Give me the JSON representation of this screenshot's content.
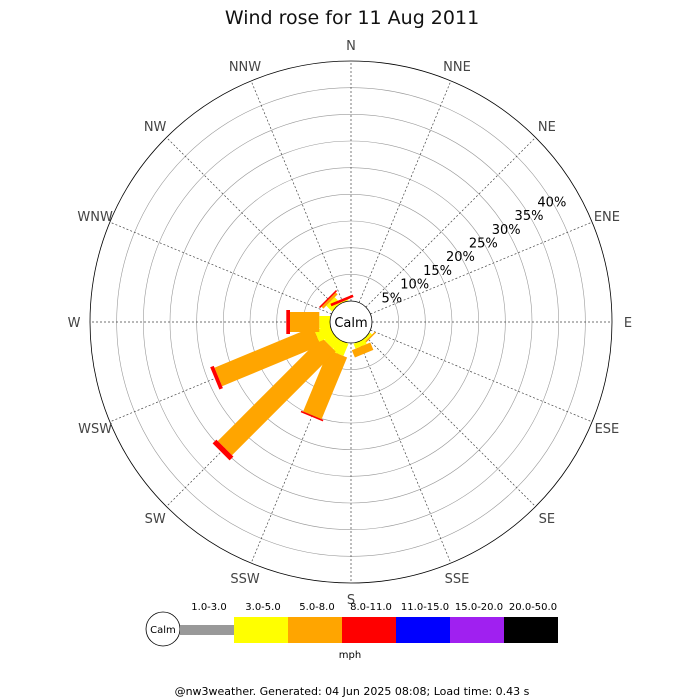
{
  "chart_data": {
    "type": "wind-rose",
    "title": "Wind rose for 11 Aug 2011",
    "directions": [
      "N",
      "NNE",
      "NE",
      "ENE",
      "E",
      "ESE",
      "SE",
      "SSE",
      "S",
      "SSW",
      "SW",
      "WSW",
      "W",
      "WNW",
      "NW",
      "NNW"
    ],
    "radial_ticks": [
      "5%",
      "10%",
      "15%",
      "20%",
      "25%",
      "30%",
      "35%",
      "40%"
    ],
    "radial_max_percent": 45,
    "calm_label": "Calm",
    "speed_bins": [
      {
        "label": "1.0-3.0",
        "color": "#999999"
      },
      {
        "label": "3.0-5.0",
        "color": "#ffff00"
      },
      {
        "label": "5.0-8.0",
        "color": "#ffa500"
      },
      {
        "label": "8.0-11.0",
        "color": "#ff0000"
      },
      {
        "label": "11.0-15.0",
        "color": "#0000ff"
      },
      {
        "label": "15.0-20.0",
        "color": "#a020f0"
      },
      {
        "label": "20.0-50.0",
        "color": "#000000"
      }
    ],
    "unit": "mph",
    "series": [
      {
        "direction": "NNE",
        "values": [
          0,
          0,
          0,
          0,
          0,
          0,
          0
        ]
      },
      {
        "direction": "NE",
        "values": [
          0,
          0,
          0,
          0,
          0,
          0,
          0
        ]
      },
      {
        "direction": "ENE",
        "values": [
          0,
          0,
          0,
          0,
          0,
          0,
          0
        ]
      },
      {
        "direction": "E",
        "values": [
          0,
          0,
          0,
          0,
          0,
          0,
          0
        ]
      },
      {
        "direction": "ESE",
        "values": [
          0,
          0,
          0,
          0,
          0,
          0,
          0
        ]
      },
      {
        "direction": "SE",
        "values": [
          0,
          0.5,
          0.3,
          0,
          0,
          0,
          0
        ]
      },
      {
        "direction": "SSE",
        "values": [
          0,
          1.0,
          1.5,
          0,
          0,
          0,
          0
        ]
      },
      {
        "direction": "S",
        "values": [
          0,
          0,
          0,
          0,
          0,
          0,
          0
        ]
      },
      {
        "direction": "SSW",
        "values": [
          0,
          2.5,
          12.5,
          0.3,
          0,
          0,
          0
        ]
      },
      {
        "direction": "SW",
        "values": [
          0,
          2.0,
          27.5,
          1.0,
          0,
          0,
          0
        ]
      },
      {
        "direction": "WSW",
        "values": [
          0,
          3.0,
          20.0,
          0.7,
          0,
          0,
          0
        ]
      },
      {
        "direction": "W",
        "values": [
          0,
          2.0,
          5.5,
          0.7,
          0,
          0,
          0
        ]
      },
      {
        "direction": "WNW",
        "values": [
          0,
          0,
          0,
          0,
          0,
          0,
          0
        ]
      },
      {
        "direction": "NW",
        "values": [
          0,
          1.5,
          0.5,
          0.3,
          0,
          0,
          0
        ]
      },
      {
        "direction": "NNW",
        "values": [
          0,
          0.2,
          0,
          0.5,
          0,
          0,
          0
        ]
      },
      {
        "direction": "N",
        "values": [
          0,
          0,
          0,
          0,
          0,
          0,
          0
        ]
      }
    ],
    "grid": true
  },
  "footer": "@nw3weather. Generated: 04 Jun 2025 08:08; Load time: 0.43 s"
}
